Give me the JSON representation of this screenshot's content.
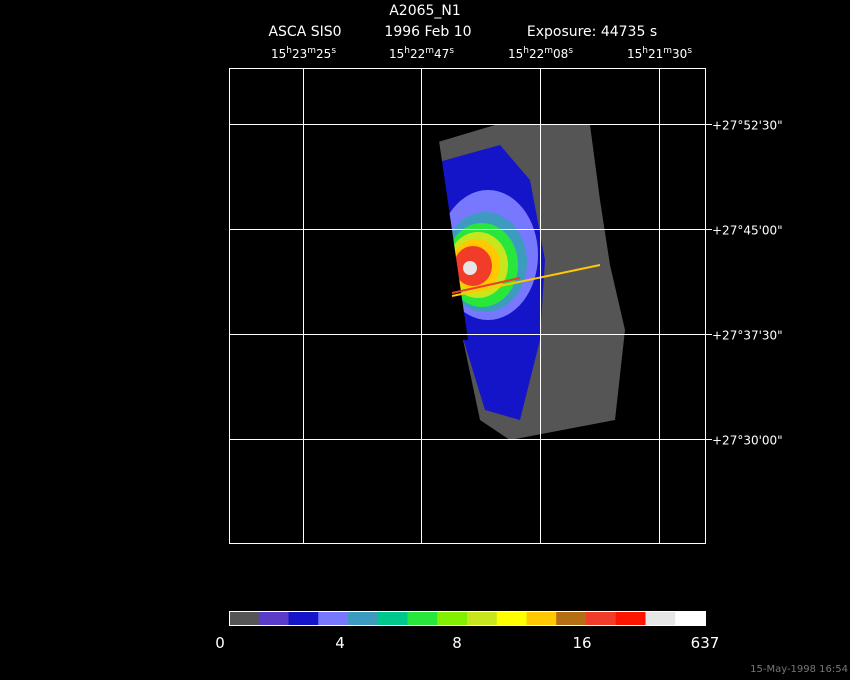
{
  "header": {
    "title": "A2065_N1",
    "instrument": "ASCA SIS0",
    "date": "1996 Feb 10",
    "exposure": "Exposure: 44735 s"
  },
  "ra_labels": [
    [
      "15",
      "h",
      "23",
      "m",
      "25",
      "s"
    ],
    [
      "15",
      "h",
      "22",
      "m",
      "47",
      "s"
    ],
    [
      "15",
      "h",
      "22",
      "m",
      "08",
      "s"
    ],
    [
      "15",
      "h",
      "21",
      "m",
      "30",
      "s"
    ]
  ],
  "dec_labels": [
    "+27°52'30\"",
    "+27°45'00\"",
    "+27°37'30\"",
    "+27°30'00\""
  ],
  "colorbar": {
    "colors": [
      "#555555",
      "#5a3cc8",
      "#1414c8",
      "#7878ff",
      "#3c9bbe",
      "#00c88c",
      "#28e63c",
      "#82f000",
      "#c8e61e",
      "#ffff00",
      "#ffc800",
      "#b46e14",
      "#f03c28",
      "#ff1400",
      "#e6e6e6",
      "#ffffff"
    ],
    "labels": [
      "0",
      "4",
      "8",
      "16",
      "637"
    ]
  },
  "footer": {
    "timestamp": "15-May-1998 16:54"
  }
}
